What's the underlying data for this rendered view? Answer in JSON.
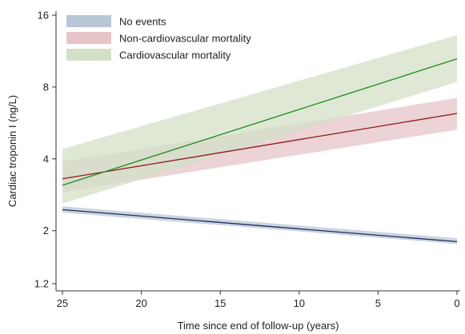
{
  "chart_data": {
    "type": "line",
    "xlabel": "Time since end of follow-up (years)",
    "ylabel": "Cardiac troponin I (ng/L)",
    "x_ticks": [
      25,
      20,
      15,
      10,
      5,
      0
    ],
    "y_ticks": [
      1.2,
      2,
      4,
      8,
      16
    ],
    "xlim": [
      25,
      0
    ],
    "ylim": [
      1.2,
      16
    ],
    "y_scale": "log",
    "legend_position": "top-left",
    "grid": false,
    "series": [
      {
        "name": "No events",
        "color": "#1f2d5a",
        "band_color": "#b9c6d8",
        "x": [
          25,
          0
        ],
        "y": [
          2.45,
          1.8
        ],
        "lower": [
          2.38,
          1.76
        ],
        "upper": [
          2.53,
          1.86
        ]
      },
      {
        "name": "Non-cardiovascular mortality",
        "color": "#8b1a1a",
        "band_color": "#e6c4c8",
        "x": [
          25,
          0
        ],
        "y": [
          3.3,
          6.2
        ],
        "lower": [
          2.9,
          5.3
        ],
        "upper": [
          3.9,
          7.2
        ]
      },
      {
        "name": "Cardiovascular mortality",
        "color": "#1e8c1e",
        "band_color": "#d3e0c7",
        "x": [
          25,
          0
        ],
        "y": [
          3.1,
          10.5
        ],
        "lower": [
          2.6,
          8.4
        ],
        "upper": [
          4.4,
          13.2
        ]
      }
    ]
  }
}
